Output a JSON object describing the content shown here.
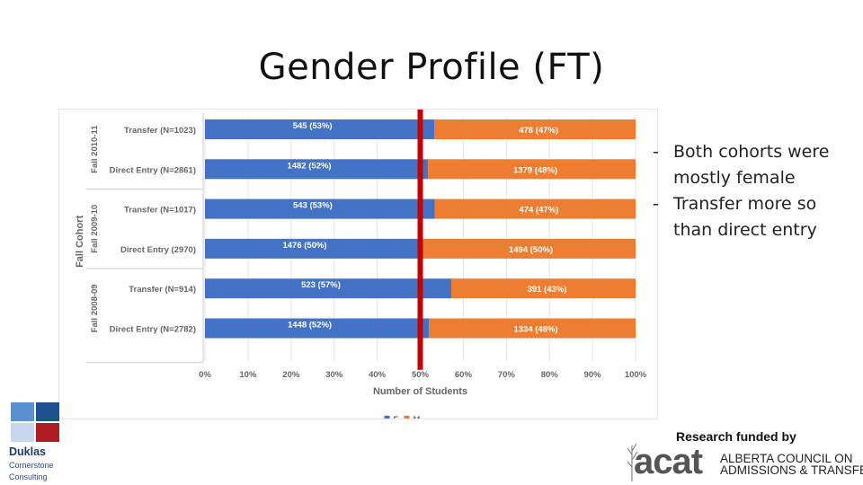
{
  "slide": {
    "title": "Gender Profile (FT)",
    "bullets": [
      "Both cohorts were mostly female",
      "Transfer more so than direct entry"
    ],
    "bullet_marker": "-",
    "funded_by": "Research funded by",
    "acat": {
      "wordmark": "acat",
      "line1": "ALBERTA COUNCIL ON",
      "line2": "ADMISSIONS & TRANSFER"
    },
    "duklas": {
      "name": "Duklas",
      "sub1": "Cornerstone",
      "sub2": "Consulting",
      "square_colors": [
        "#5b8fd0",
        "#1f4f8e",
        "#c8d8ee",
        "#b01c26"
      ]
    }
  },
  "chart_data": {
    "type": "bar",
    "orientation": "horizontal",
    "stacked": "100%",
    "xlabel": "Number of Students",
    "ylabel": "Fall Cohort",
    "x_ticks": [
      "0%",
      "10%",
      "20%",
      "30%",
      "40%",
      "50%",
      "60%",
      "70%",
      "80%",
      "90%",
      "100%"
    ],
    "xlim": [
      0,
      100
    ],
    "reference_line": {
      "value": 50,
      "color": "#c00000"
    },
    "groups": [
      {
        "label": "Fall 2010-11",
        "categories": [
          "Transfer (N=1023)",
          "Direct Entry (N=2861)"
        ]
      },
      {
        "label": "Fall 2009-10",
        "categories": [
          "Transfer (N=1017)",
          "Direct Entry (2970)"
        ]
      },
      {
        "label": "Fall 2008-09",
        "categories": [
          "Transfer (N=914)",
          "Direct Entry (N=2782)"
        ]
      }
    ],
    "categories": [
      "Transfer (N=1023)",
      "Direct Entry (N=2861)",
      "Transfer (N=1017)",
      "Direct Entry (2970)",
      "Transfer (N=914)",
      "Direct Entry (N=2782)"
    ],
    "series": [
      {
        "name": "F",
        "color": "#4472c4",
        "percent": [
          53.3,
          51.8,
          53.4,
          49.7,
          57.2,
          52.0
        ],
        "labels": [
          "545 (53%)",
          "1482 (52%)",
          "543 (53%)",
          "1476 (50%)",
          "523 (57%)",
          "1448 (52%)"
        ]
      },
      {
        "name": "M",
        "color": "#ed7d31",
        "percent": [
          46.7,
          48.2,
          46.6,
          50.3,
          42.8,
          48.0
        ],
        "labels": [
          "478 (47%)",
          "1379 (48%)",
          "474 (47%)",
          "1494 (50%)",
          "391 (43%)",
          "1334 (48%)"
        ]
      }
    ],
    "legend": {
      "position": "bottom",
      "entries": [
        "F",
        "M"
      ]
    },
    "grid": true
  }
}
